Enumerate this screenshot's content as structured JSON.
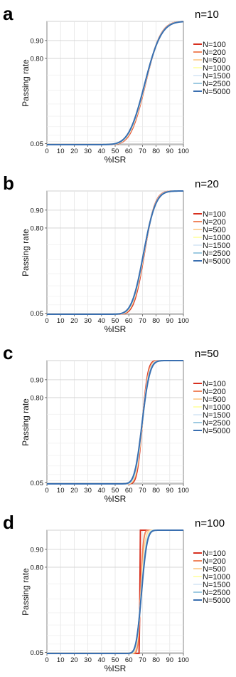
{
  "chart_data": [
    {
      "type": "line",
      "panel_label": "a",
      "title": "n=10",
      "xlabel": "%ISR",
      "ylabel": "Passing rate",
      "xlim": [
        0,
        100
      ],
      "x_ticks": [
        0,
        10,
        20,
        30,
        40,
        50,
        60,
        70,
        80,
        90,
        100
      ],
      "y_ticks": [
        0.05,
        0.8,
        0.9
      ],
      "y_tick_labels": [
        "0.05",
        "0.80",
        "0.90"
      ],
      "grid": true,
      "legend_position": "right",
      "series": [
        {
          "name": "N=100",
          "color": "#d7301f",
          "center": 68.5,
          "width": 10.0
        },
        {
          "name": "N=200",
          "color": "#f0865f",
          "center": 68.3,
          "width": 10.2
        },
        {
          "name": "N=500",
          "color": "#fdd49e",
          "center": 68.1,
          "width": 10.4
        },
        {
          "name": "N=1000",
          "color": "#ffffb2",
          "center": 68.0,
          "width": 10.5
        },
        {
          "name": "N=1500",
          "color": "#deebf7",
          "center": 67.9,
          "width": 10.6
        },
        {
          "name": "N=2500",
          "color": "#9ecae1",
          "center": 67.8,
          "width": 10.7
        },
        {
          "name": "N=5000",
          "color": "#3a6fb0",
          "center": 67.7,
          "width": 10.8
        }
      ]
    },
    {
      "type": "line",
      "panel_label": "b",
      "title": "n=20",
      "xlabel": "%ISR",
      "ylabel": "Passing rate",
      "xlim": [
        0,
        100
      ],
      "x_ticks": [
        0,
        10,
        20,
        30,
        40,
        50,
        60,
        70,
        80,
        90,
        100
      ],
      "y_ticks": [
        0.05,
        0.8,
        0.9
      ],
      "y_tick_labels": [
        "0.05",
        "0.80",
        "0.90"
      ],
      "grid": true,
      "legend_position": "right",
      "series": [
        {
          "name": "N=100",
          "color": "#d7301f",
          "center": 68.8,
          "width": 7.0
        },
        {
          "name": "N=200",
          "color": "#f0865f",
          "center": 68.5,
          "width": 7.3
        },
        {
          "name": "N=500",
          "color": "#fdd49e",
          "center": 68.3,
          "width": 7.5
        },
        {
          "name": "N=1000",
          "color": "#ffffb2",
          "center": 68.2,
          "width": 7.6
        },
        {
          "name": "N=1500",
          "color": "#deebf7",
          "center": 68.1,
          "width": 7.7
        },
        {
          "name": "N=2500",
          "color": "#9ecae1",
          "center": 68.0,
          "width": 7.8
        },
        {
          "name": "N=5000",
          "color": "#3a6fb0",
          "center": 67.9,
          "width": 7.9
        }
      ]
    },
    {
      "type": "line",
      "panel_label": "c",
      "title": "n=50",
      "xlabel": "%ISR",
      "ylabel": "Passing rate",
      "xlim": [
        0,
        100
      ],
      "x_ticks": [
        0,
        10,
        20,
        30,
        40,
        50,
        60,
        70,
        80,
        90,
        100
      ],
      "y_ticks": [
        0.05,
        0.8,
        0.9
      ],
      "y_tick_labels": [
        "0.05",
        "0.80",
        "0.90"
      ],
      "grid": true,
      "legend_position": "right",
      "series": [
        {
          "name": "N=100",
          "color": "#d7301f",
          "center": 68.6,
          "width": 3.6
        },
        {
          "name": "N=200",
          "color": "#f0865f",
          "center": 68.4,
          "width": 4.0
        },
        {
          "name": "N=500",
          "color": "#fdd49e",
          "center": 68.3,
          "width": 4.3
        },
        {
          "name": "N=1000",
          "color": "#ffffb2",
          "center": 68.2,
          "width": 4.5
        },
        {
          "name": "N=1500",
          "color": "#deebf7",
          "center": 68.1,
          "width": 4.6
        },
        {
          "name": "N=2500",
          "color": "#9ecae1",
          "center": 68.0,
          "width": 4.8
        },
        {
          "name": "N=5000",
          "color": "#3a6fb0",
          "center": 67.9,
          "width": 5.0
        }
      ]
    },
    {
      "type": "line",
      "panel_label": "d",
      "title": "n=100",
      "xlabel": "%ISR",
      "ylabel": "Passing rate",
      "xlim": [
        0,
        100
      ],
      "x_ticks": [
        0,
        10,
        20,
        30,
        40,
        50,
        60,
        70,
        80,
        90,
        100
      ],
      "y_ticks": [
        0.05,
        0.8,
        0.9
      ],
      "y_tick_labels": [
        "0.05",
        "0.80",
        "0.90"
      ],
      "grid": true,
      "legend_position": "right",
      "series": [
        {
          "name": "N=100",
          "color": "#d7301f",
          "center": 68.0,
          "width": 0.05
        },
        {
          "name": "N=200",
          "color": "#f0865f",
          "center": 68.0,
          "width": 1.8
        },
        {
          "name": "N=500",
          "color": "#fdd49e",
          "center": 68.0,
          "width": 2.6
        },
        {
          "name": "N=1000",
          "color": "#ffffb2",
          "center": 68.0,
          "width": 3.0
        },
        {
          "name": "N=1500",
          "color": "#deebf7",
          "center": 68.0,
          "width": 3.2
        },
        {
          "name": "N=2500",
          "color": "#9ecae1",
          "center": 68.0,
          "width": 3.4
        },
        {
          "name": "N=5000",
          "color": "#3a6fb0",
          "center": 68.0,
          "width": 3.6
        }
      ]
    }
  ]
}
